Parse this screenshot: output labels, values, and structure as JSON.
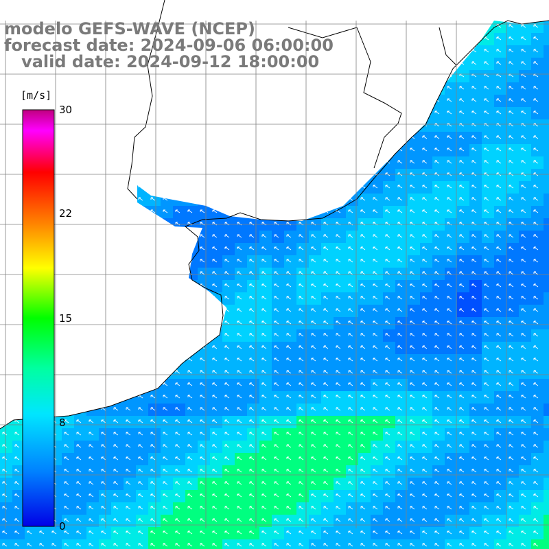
{
  "title": {
    "line1": "modelo GEFS-WAVE (NCEP)",
    "line2": "forecast date: 2024-09-06 06:00:00",
    "line3": "   valid date: 2024-09-12 18:00:00"
  },
  "colorbar": {
    "unit_label": "[m/s]",
    "ticks": [
      "30",
      "22",
      "15",
      "8",
      "0"
    ],
    "tick_values": [
      30,
      22,
      15,
      8,
      0
    ],
    "min": 0,
    "max": 30,
    "colors": [
      "#0000e6",
      "#0080ff",
      "#00e6ff",
      "#00ff00",
      "#ffff00",
      "#ff8000",
      "#ff0000",
      "#ff00ff",
      "#c00080"
    ]
  },
  "map": {
    "region": "southwestern South Atlantic / Rio de la Plata",
    "field": "wind speed with direction arrows",
    "land_color": "#ffffff",
    "coastline_color": "#000000",
    "grid_color": "#808080",
    "arrow_color": "#ffffff",
    "arrow_direction": "toward north-west"
  }
}
